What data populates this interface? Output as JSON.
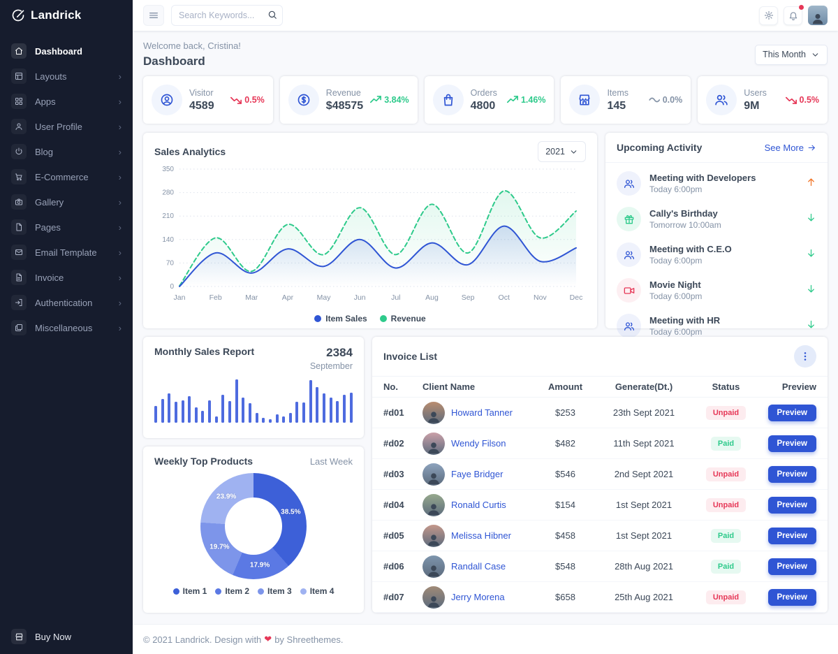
{
  "colors": {
    "primary": "#2f55d4",
    "success": "#2eca8b",
    "danger": "#e63757",
    "warning": "#f17425",
    "muted": "#8492a6",
    "sidebar_bg": "#161c2d"
  },
  "brand": {
    "name": "Landrick"
  },
  "topbar": {
    "search_placeholder": "Search Keywords..."
  },
  "sidebar": {
    "items": [
      {
        "label": "Dashboard",
        "icon": "home",
        "active": true,
        "chevron": false
      },
      {
        "label": "Layouts",
        "icon": "layout",
        "active": false,
        "chevron": true
      },
      {
        "label": "Apps",
        "icon": "grid",
        "active": false,
        "chevron": true
      },
      {
        "label": "User Profile",
        "icon": "user",
        "active": false,
        "chevron": true
      },
      {
        "label": "Blog",
        "icon": "power",
        "active": false,
        "chevron": true
      },
      {
        "label": "E-Commerce",
        "icon": "cart",
        "active": false,
        "chevron": true
      },
      {
        "label": "Gallery",
        "icon": "camera",
        "active": false,
        "chevron": true
      },
      {
        "label": "Pages",
        "icon": "file",
        "active": false,
        "chevron": true
      },
      {
        "label": "Email Template",
        "icon": "mail",
        "active": false,
        "chevron": true
      },
      {
        "label": "Invoice",
        "icon": "file-text",
        "active": false,
        "chevron": true
      },
      {
        "label": "Authentication",
        "icon": "login",
        "active": false,
        "chevron": true
      },
      {
        "label": "Miscellaneous",
        "icon": "layers",
        "active": false,
        "chevron": true
      }
    ],
    "buy_now_label": "Buy Now"
  },
  "header": {
    "welcome": "Welcome back, Cristina!",
    "title": "Dashboard",
    "period_selector": "This Month"
  },
  "stats": [
    {
      "label": "Visitor",
      "value": "4589",
      "delta": "0.5%",
      "trend": "down",
      "icon": "user-circle"
    },
    {
      "label": "Revenue",
      "value": "$48575",
      "delta": "3.84%",
      "trend": "up",
      "icon": "dollar-circle"
    },
    {
      "label": "Orders",
      "value": "4800",
      "delta": "1.46%",
      "trend": "up",
      "icon": "shopping-bag"
    },
    {
      "label": "Items",
      "value": "145",
      "delta": "0.0%",
      "trend": "flat",
      "icon": "store"
    },
    {
      "label": "Users",
      "value": "9M",
      "delta": "0.5%",
      "trend": "down",
      "icon": "users"
    }
  ],
  "sales": {
    "title": "Sales Analytics",
    "year": "2021"
  },
  "activity": {
    "title": "Upcoming Activity",
    "see_more": "See More",
    "items": [
      {
        "title": "Meeting with Developers",
        "time": "Today 6:00pm",
        "icon": "users",
        "tone": "blue",
        "arrow": "up",
        "arrow_color": "#f17425"
      },
      {
        "title": "Cally's Birthday",
        "time": "Tomorrow 10:00am",
        "icon": "gift",
        "tone": "green",
        "arrow": "down",
        "arrow_color": "#2eca8b"
      },
      {
        "title": "Meeting with C.E.O",
        "time": "Today 6:00pm",
        "icon": "users",
        "tone": "blue",
        "arrow": "down",
        "arrow_color": "#2eca8b"
      },
      {
        "title": "Movie Night",
        "time": "Today 6:00pm",
        "icon": "video",
        "tone": "red",
        "arrow": "down",
        "arrow_color": "#2eca8b"
      },
      {
        "title": "Meeting with HR",
        "time": "Today 6:00pm",
        "icon": "users",
        "tone": "blue",
        "arrow": "down",
        "arrow_color": "#2eca8b"
      }
    ]
  },
  "monthly": {
    "title": "Monthly Sales Report",
    "value": "2384",
    "month": "September"
  },
  "weekly": {
    "title": "Weekly Top Products",
    "period": "Last Week"
  },
  "invoices": {
    "title": "Invoice List",
    "columns": [
      "No.",
      "Client Name",
      "Amount",
      "Generate(Dt.)",
      "Status",
      "Preview"
    ],
    "preview_label": "Preview",
    "rows": [
      {
        "no": "#d01",
        "name": "Howard Tanner",
        "amount": "$253",
        "date": "23th Sept 2021",
        "status": "Unpaid"
      },
      {
        "no": "#d02",
        "name": "Wendy Filson",
        "amount": "$482",
        "date": "11th Sept 2021",
        "status": "Paid"
      },
      {
        "no": "#d03",
        "name": "Faye Bridger",
        "amount": "$546",
        "date": "2nd Sept 2021",
        "status": "Unpaid"
      },
      {
        "no": "#d04",
        "name": "Ronald Curtis",
        "amount": "$154",
        "date": "1st Sept 2021",
        "status": "Unpaid"
      },
      {
        "no": "#d05",
        "name": "Melissa Hibner",
        "amount": "$458",
        "date": "1st Sept 2021",
        "status": "Paid"
      },
      {
        "no": "#d06",
        "name": "Randall Case",
        "amount": "$548",
        "date": "28th Aug 2021",
        "status": "Paid"
      },
      {
        "no": "#d07",
        "name": "Jerry Morena",
        "amount": "$658",
        "date": "25th Aug 2021",
        "status": "Unpaid"
      }
    ]
  },
  "footer": {
    "prefix": "© 2021 Landrick. Design with",
    "heart": "❤",
    "suffix": "by Shreethemes."
  },
  "chart_data": [
    {
      "id": "sales_analytics",
      "type": "line",
      "title": "Sales Analytics",
      "x": [
        "Jan",
        "Feb",
        "Mar",
        "Apr",
        "May",
        "Jun",
        "Jul",
        "Aug",
        "Sep",
        "Oct",
        "Nov",
        "Dec"
      ],
      "ylim": [
        0,
        350
      ],
      "yticks": [
        0,
        70,
        140,
        210,
        280,
        350
      ],
      "grid": "horizontal-dotted",
      "legend_position": "bottom",
      "series": [
        {
          "name": "Item Sales",
          "color": "#2f55d4",
          "style": "solid",
          "values": [
            0,
            100,
            40,
            112,
            60,
            140,
            55,
            130,
            65,
            180,
            75,
            115
          ]
        },
        {
          "name": "Revenue",
          "color": "#2eca8b",
          "style": "dashed",
          "values": [
            2,
            145,
            45,
            185,
            95,
            235,
            95,
            245,
            100,
            285,
            145,
            225
          ]
        }
      ]
    },
    {
      "id": "monthly_sales",
      "type": "bar",
      "title": "Monthly Sales Report",
      "color": "#4e6bdf",
      "values": [
        38,
        55,
        68,
        48,
        52,
        62,
        35,
        28,
        52,
        15,
        65,
        50,
        100,
        58,
        45,
        22,
        12,
        8,
        20,
        14,
        22,
        48,
        46,
        98,
        82,
        68,
        58,
        50,
        64,
        70
      ]
    },
    {
      "id": "weekly_top_products",
      "type": "donut",
      "title": "Weekly Top Products",
      "labels": [
        "Item 1",
        "Item 2",
        "Item 3",
        "Item 4"
      ],
      "values": [
        38.5,
        17.9,
        19.7,
        23.9
      ],
      "colors": [
        "#3d60d8",
        "#5b79e4",
        "#7d95ea",
        "#9fb2f1"
      ]
    }
  ]
}
